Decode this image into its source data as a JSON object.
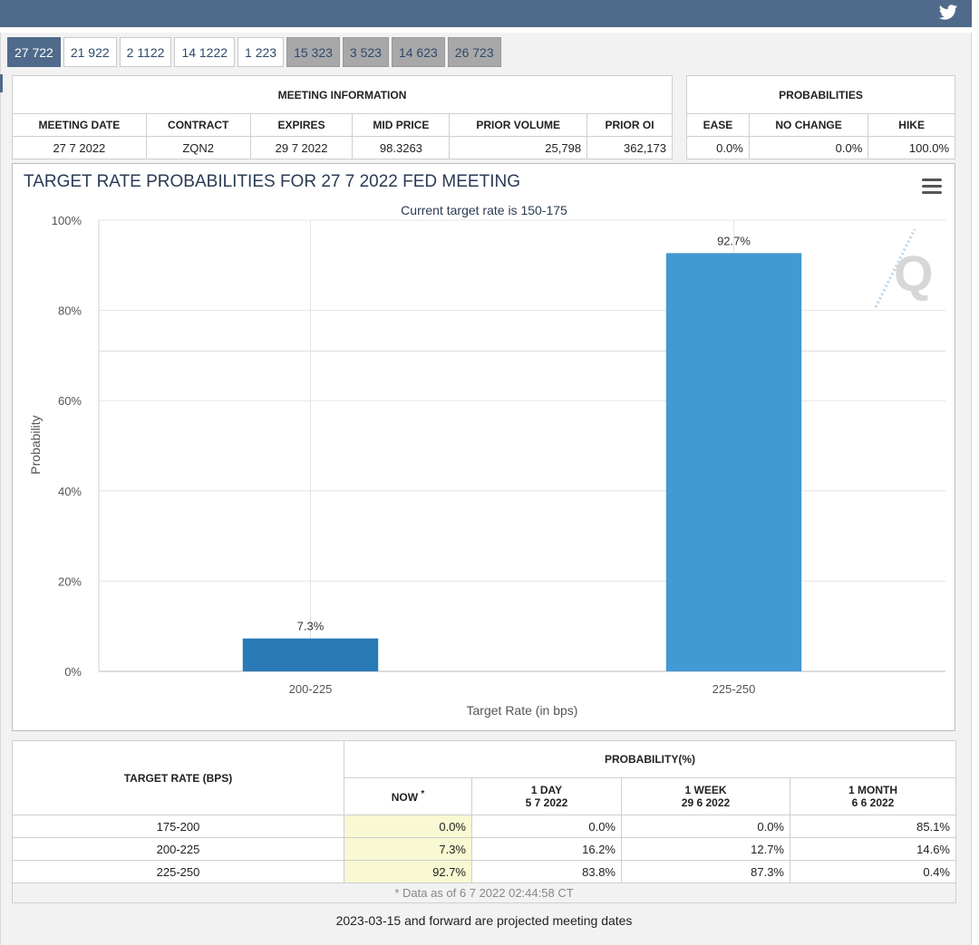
{
  "tabs": [
    "27 722",
    "21 922",
    "2 1122",
    "14 1222",
    "1 223",
    "15 323",
    "3 523",
    "14 623",
    "26 723"
  ],
  "meeting_info": {
    "header": "MEETING INFORMATION",
    "columns": [
      "MEETING DATE",
      "CONTRACT",
      "EXPIRES",
      "MID PRICE",
      "PRIOR VOLUME",
      "PRIOR OI"
    ],
    "row": [
      "27 7 2022",
      "ZQN2",
      "29 7 2022",
      "98.3263",
      "25,798",
      "362,173"
    ]
  },
  "probabilities": {
    "header": "PROBABILITIES",
    "columns": [
      "EASE",
      "NO CHANGE",
      "HIKE"
    ],
    "row": [
      "0.0%",
      "0.0%",
      "100.0%"
    ]
  },
  "chart": {
    "title": "TARGET RATE PROBABILITIES FOR 27 7 2022 FED MEETING",
    "subtitle": "Current target rate is 150-175",
    "xlabel": "Target Rate (in bps)",
    "ylabel": "Probability",
    "watermark": "Q"
  },
  "chart_data": {
    "type": "bar",
    "title": "TARGET RATE PROBABILITIES FOR 27 7 2022 FED MEETING",
    "subtitle": "Current target rate is 150-175",
    "categories": [
      "200-225",
      "225-250"
    ],
    "values": [
      7.3,
      92.7
    ],
    "labels": [
      "7.3%",
      "92.7%"
    ],
    "colors": [
      "#2a7ab8",
      "#4299d3"
    ],
    "xlabel": "Target Rate (in bps)",
    "ylabel": "Probability",
    "ylim": [
      0,
      100
    ],
    "yticks": [
      0,
      20,
      40,
      60,
      80,
      100
    ],
    "ytick_labels": [
      "0%",
      "20%",
      "40%",
      "60%",
      "80%",
      "100%"
    ],
    "grid": true
  },
  "bottom_table": {
    "target_header": "TARGET RATE (BPS)",
    "prob_header": "PROBABILITY(%)",
    "col_now": "NOW",
    "col_now_mark": "*",
    "col_day": [
      "1 DAY",
      "5 7 2022"
    ],
    "col_week": [
      "1 WEEK",
      "29 6 2022"
    ],
    "col_month": [
      "1 MONTH",
      "6 6 2022"
    ],
    "rows": [
      {
        "rate": "175-200",
        "now": "0.0%",
        "day": "0.0%",
        "week": "0.0%",
        "month": "85.1%"
      },
      {
        "rate": "200-225",
        "now": "7.3%",
        "day": "16.2%",
        "week": "12.7%",
        "month": "14.6%"
      },
      {
        "rate": "225-250",
        "now": "92.7%",
        "day": "83.8%",
        "week": "87.3%",
        "month": "0.4%"
      }
    ],
    "footnote": "* Data as of 6 7 2022 02:44:58 CT"
  },
  "note": "2023-03-15 and forward are projected meeting dates"
}
